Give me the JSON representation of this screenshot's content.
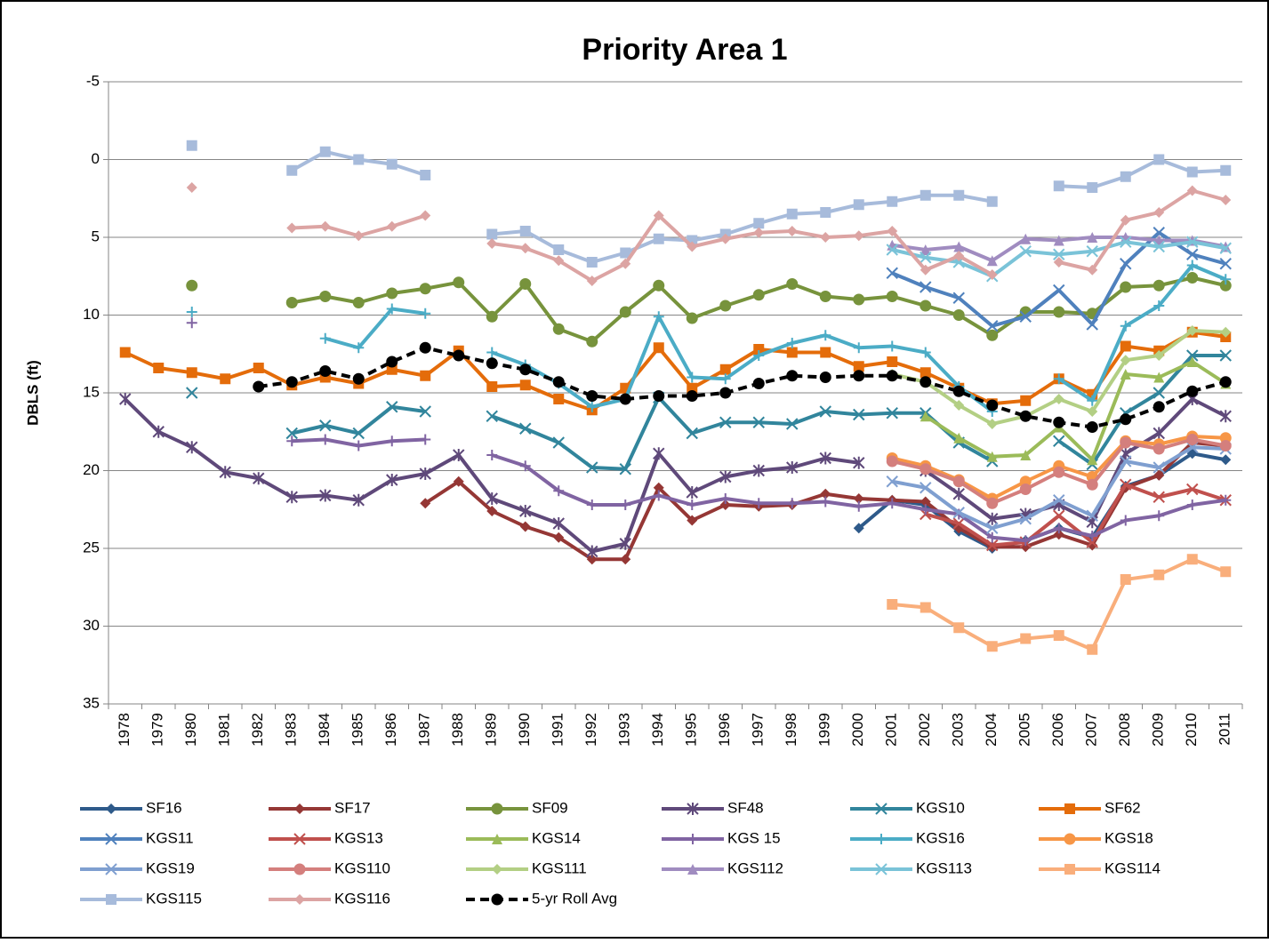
{
  "chart_data": {
    "type": "line",
    "title": "Priority Area 1",
    "y_label": "DBLS (ft)",
    "categories": [
      "1978",
      "1979",
      "1980",
      "1981",
      "1982",
      "1983",
      "1984",
      "1985",
      "1986",
      "1987",
      "1988",
      "1989",
      "1990",
      "1991",
      "1992",
      "1993",
      "1994",
      "1995",
      "1996",
      "1997",
      "1998",
      "1999",
      "2000",
      "2001",
      "2002",
      "2003",
      "2004",
      "2005",
      "2006",
      "2007",
      "2008",
      "2009",
      "2010",
      "2011"
    ],
    "ylim": [
      -5,
      35
    ],
    "y_inverted": true,
    "yticks": [
      -5,
      0,
      5,
      10,
      15,
      20,
      25,
      30,
      35
    ],
    "grid": true,
    "legend": "bottom",
    "series": [
      {
        "name": "SF16",
        "color": "#2e5a8a",
        "marker": "diamond",
        "values": [
          null,
          null,
          null,
          null,
          null,
          null,
          null,
          null,
          null,
          null,
          null,
          null,
          null,
          null,
          null,
          null,
          null,
          null,
          null,
          null,
          null,
          null,
          23.7,
          21.9,
          22.2,
          23.9,
          25.0,
          24.5,
          23.7,
          24.3,
          21.0,
          20.3,
          18.9,
          19.3
        ]
      },
      {
        "name": "SF17",
        "color": "#953735",
        "marker": "diamond",
        "values": [
          null,
          null,
          null,
          null,
          null,
          null,
          null,
          null,
          null,
          22.1,
          20.7,
          22.6,
          23.6,
          24.3,
          25.7,
          25.7,
          21.1,
          23.2,
          22.2,
          22.3,
          22.2,
          21.5,
          21.8,
          21.9,
          22.0,
          23.7,
          24.9,
          24.9,
          24.1,
          24.8,
          21.1,
          20.3,
          18.2,
          18.4
        ]
      },
      {
        "name": "SF09",
        "color": "#77933c",
        "marker": "circle",
        "values": [
          null,
          null,
          8.1,
          null,
          null,
          9.2,
          8.8,
          9.2,
          8.6,
          8.3,
          7.9,
          10.1,
          8.0,
          10.9,
          11.7,
          9.8,
          8.1,
          10.2,
          9.4,
          8.7,
          8.0,
          8.8,
          9.0,
          8.8,
          9.4,
          10.0,
          11.3,
          9.8,
          9.8,
          9.9,
          8.2,
          8.1,
          7.6,
          8.1
        ]
      },
      {
        "name": "SF48",
        "color": "#5f497a",
        "marker": "star",
        "values": [
          15.4,
          17.5,
          18.5,
          20.1,
          20.5,
          21.7,
          21.6,
          21.9,
          20.6,
          20.2,
          19.0,
          21.8,
          22.6,
          23.4,
          25.2,
          24.7,
          18.9,
          21.4,
          20.4,
          20.0,
          19.8,
          19.2,
          19.5,
          null,
          20.0,
          21.5,
          23.1,
          22.8,
          22.2,
          23.3,
          18.9,
          17.6,
          15.4,
          16.5
        ]
      },
      {
        "name": "KGS10",
        "color": "#31859c",
        "marker": "x",
        "values": [
          null,
          null,
          15.0,
          null,
          null,
          17.6,
          17.1,
          17.6,
          15.9,
          16.2,
          null,
          16.5,
          17.3,
          18.2,
          19.8,
          19.9,
          15.3,
          17.6,
          16.9,
          16.9,
          17.0,
          16.2,
          16.4,
          16.3,
          16.3,
          18.2,
          19.4,
          null,
          18.1,
          19.6,
          16.3,
          15.0,
          12.6,
          12.6
        ]
      },
      {
        "name": "SF62",
        "color": "#e46c0a",
        "marker": "square",
        "values": [
          12.4,
          13.4,
          13.7,
          14.1,
          13.4,
          14.5,
          14.0,
          14.4,
          13.5,
          13.9,
          12.3,
          14.6,
          14.5,
          15.4,
          16.1,
          14.7,
          12.1,
          14.7,
          13.5,
          12.2,
          12.4,
          12.4,
          13.3,
          13.0,
          13.7,
          14.7,
          15.7,
          15.5,
          14.1,
          15.1,
          12.0,
          12.3,
          11.1,
          11.4
        ]
      },
      {
        "name": "KGS11",
        "color": "#4f81bd",
        "marker": "x",
        "values": [
          null,
          null,
          null,
          null,
          null,
          null,
          null,
          null,
          null,
          null,
          null,
          null,
          null,
          null,
          null,
          null,
          null,
          null,
          null,
          null,
          null,
          null,
          null,
          7.3,
          8.2,
          8.9,
          10.7,
          10.1,
          8.4,
          10.6,
          6.7,
          4.7,
          6.1,
          6.7
        ]
      },
      {
        "name": "KGS13",
        "color": "#c0504d",
        "marker": "x",
        "values": [
          null,
          null,
          null,
          null,
          null,
          null,
          null,
          null,
          null,
          null,
          null,
          null,
          null,
          null,
          null,
          null,
          null,
          null,
          null,
          null,
          null,
          null,
          null,
          null,
          22.8,
          23.4,
          24.8,
          24.6,
          22.9,
          24.6,
          20.9,
          21.7,
          21.2,
          21.9
        ]
      },
      {
        "name": "KGS14",
        "color": "#9bbb59",
        "marker": "triangle",
        "values": [
          null,
          null,
          null,
          null,
          null,
          null,
          null,
          null,
          null,
          null,
          null,
          null,
          null,
          null,
          null,
          null,
          null,
          null,
          null,
          null,
          null,
          null,
          null,
          null,
          16.5,
          17.9,
          19.1,
          19.0,
          17.2,
          19.3,
          13.8,
          14.0,
          13.0,
          14.4
        ]
      },
      {
        "name": "KGS 15",
        "color": "#8064a2",
        "marker": "plus",
        "values": [
          null,
          null,
          10.5,
          null,
          null,
          18.1,
          18.0,
          18.4,
          18.1,
          18.0,
          null,
          19.0,
          19.7,
          21.3,
          22.2,
          22.2,
          21.6,
          22.2,
          21.8,
          22.1,
          22.1,
          22.0,
          22.3,
          22.1,
          22.5,
          22.8,
          24.3,
          24.5,
          23.7,
          24.2,
          23.2,
          22.9,
          22.2,
          21.9
        ]
      },
      {
        "name": "KGS16",
        "color": "#4bacc6",
        "marker": "plus",
        "values": [
          null,
          null,
          9.8,
          null,
          null,
          null,
          11.5,
          12.1,
          9.6,
          9.9,
          null,
          12.4,
          13.2,
          14.4,
          15.9,
          15.4,
          10.1,
          14.0,
          14.1,
          12.6,
          11.8,
          11.3,
          12.1,
          12.0,
          12.4,
          14.6,
          16.2,
          null,
          14.1,
          15.5,
          10.7,
          9.4,
          6.8,
          7.7
        ]
      },
      {
        "name": "KGS18",
        "color": "#f79646",
        "marker": "circle",
        "values": [
          null,
          null,
          null,
          null,
          null,
          null,
          null,
          null,
          null,
          null,
          null,
          null,
          null,
          null,
          null,
          null,
          null,
          null,
          null,
          null,
          null,
          null,
          null,
          19.2,
          19.7,
          20.6,
          21.8,
          20.7,
          19.7,
          20.4,
          18.1,
          18.3,
          17.8,
          17.9
        ]
      },
      {
        "name": "KGS19",
        "color": "#7f9fd0",
        "marker": "x",
        "values": [
          null,
          null,
          null,
          null,
          null,
          null,
          null,
          null,
          null,
          null,
          null,
          null,
          null,
          null,
          null,
          null,
          null,
          null,
          null,
          null,
          null,
          null,
          null,
          20.7,
          21.1,
          22.7,
          23.7,
          23.1,
          21.9,
          22.9,
          19.4,
          19.8,
          18.5,
          18.6
        ]
      },
      {
        "name": "KGS110",
        "color": "#d47f7d",
        "marker": "circle",
        "values": [
          null,
          null,
          null,
          null,
          null,
          null,
          null,
          null,
          null,
          null,
          null,
          null,
          null,
          null,
          null,
          null,
          null,
          null,
          null,
          null,
          null,
          null,
          null,
          19.4,
          19.9,
          20.7,
          22.1,
          21.2,
          20.1,
          20.9,
          18.2,
          18.6,
          18.0,
          18.4
        ]
      },
      {
        "name": "KGS111",
        "color": "#b3cf84",
        "marker": "diamond",
        "values": [
          null,
          null,
          null,
          null,
          null,
          null,
          null,
          null,
          null,
          null,
          null,
          null,
          null,
          null,
          null,
          null,
          null,
          null,
          null,
          null,
          null,
          null,
          null,
          13.8,
          14.3,
          15.8,
          17.0,
          16.5,
          15.4,
          16.2,
          12.9,
          12.6,
          11.0,
          11.1
        ]
      },
      {
        "name": "KGS112",
        "color": "#a08cc0",
        "marker": "triangle",
        "values": [
          null,
          null,
          null,
          null,
          null,
          null,
          null,
          null,
          null,
          null,
          null,
          null,
          null,
          null,
          null,
          null,
          null,
          null,
          null,
          null,
          null,
          null,
          null,
          5.5,
          5.8,
          5.6,
          6.5,
          5.1,
          5.2,
          5.0,
          5.0,
          5.2,
          5.2,
          5.6
        ]
      },
      {
        "name": "KGS113",
        "color": "#7ac3d8",
        "marker": "x",
        "values": [
          null,
          null,
          null,
          null,
          null,
          null,
          null,
          null,
          null,
          null,
          null,
          null,
          null,
          null,
          null,
          null,
          null,
          null,
          null,
          null,
          null,
          null,
          null,
          5.8,
          6.3,
          6.6,
          7.5,
          5.9,
          6.1,
          5.9,
          5.3,
          5.6,
          5.3,
          5.7
        ]
      },
      {
        "name": "KGS114",
        "color": "#f9ae7b",
        "marker": "square",
        "values": [
          null,
          null,
          null,
          null,
          null,
          null,
          null,
          null,
          null,
          null,
          null,
          null,
          null,
          null,
          null,
          null,
          null,
          null,
          null,
          null,
          null,
          null,
          null,
          28.6,
          28.8,
          30.1,
          31.3,
          30.8,
          30.6,
          31.5,
          27.0,
          26.7,
          25.7,
          26.5
        ]
      },
      {
        "name": "KGS115",
        "color": "#a7bbdb",
        "marker": "square",
        "values": [
          null,
          null,
          -0.9,
          null,
          null,
          0.7,
          -0.5,
          0.0,
          0.3,
          1.0,
          null,
          4.8,
          4.6,
          5.8,
          6.6,
          6.0,
          5.1,
          5.2,
          4.8,
          4.1,
          3.5,
          3.4,
          2.9,
          2.7,
          2.3,
          2.3,
          2.7,
          null,
          1.7,
          1.8,
          1.1,
          0.0,
          0.8,
          0.7
        ]
      },
      {
        "name": "KGS116",
        "color": "#dca4a3",
        "marker": "diamond",
        "values": [
          null,
          null,
          1.8,
          null,
          null,
          4.4,
          4.3,
          4.9,
          4.3,
          3.6,
          null,
          5.4,
          5.7,
          6.5,
          7.8,
          6.7,
          3.6,
          5.6,
          5.1,
          4.7,
          4.6,
          5.0,
          4.9,
          4.6,
          7.1,
          6.2,
          7.4,
          null,
          6.6,
          7.1,
          3.9,
          3.4,
          2.0,
          2.6
        ]
      },
      {
        "name": "5-yr Roll Avg",
        "color": "#000000",
        "marker": "circle",
        "dashed": true,
        "values": [
          null,
          null,
          null,
          null,
          14.6,
          14.3,
          13.6,
          14.1,
          13.0,
          12.1,
          12.6,
          13.1,
          13.5,
          14.3,
          15.2,
          15.4,
          15.2,
          15.2,
          15.0,
          14.4,
          13.9,
          14.0,
          13.9,
          13.9,
          14.3,
          14.9,
          15.8,
          16.5,
          16.9,
          17.2,
          16.7,
          15.9,
          14.9,
          14.3
        ]
      }
    ]
  }
}
